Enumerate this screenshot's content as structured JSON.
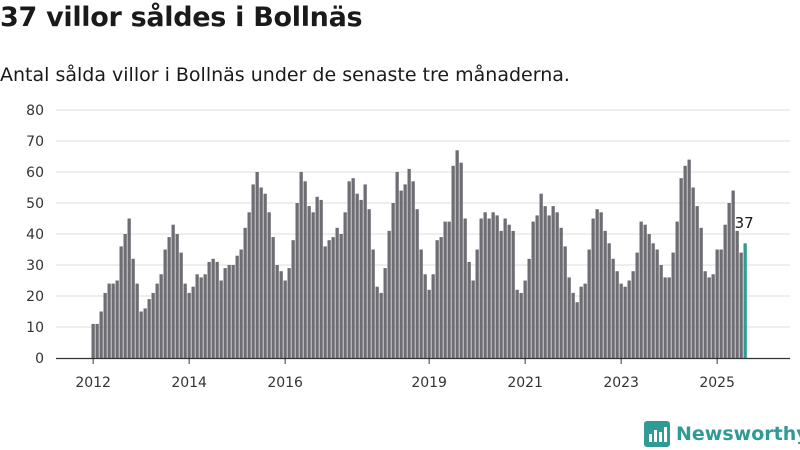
{
  "title": "37 villor såldes i Bollnäs",
  "subtitle": "Antal sålda villor i Bollnäs under de senaste tre månaderna.",
  "brand": "Newsworthy",
  "colors": {
    "bar": "#6e6d73",
    "highlight": "#2f9a96",
    "grid": "#dddddd",
    "axis": "#333333"
  },
  "chart_data": {
    "type": "bar",
    "title": "37 villor såldes i Bollnäs",
    "xlabel": "",
    "ylabel": "",
    "ylim": [
      0,
      80
    ],
    "yticks": [
      0,
      10,
      20,
      30,
      40,
      50,
      60,
      70,
      80
    ],
    "xtick_labels": [
      {
        "label": "2012",
        "index": 0
      },
      {
        "label": "2014",
        "index": 24
      },
      {
        "label": "2016",
        "index": 48
      },
      {
        "label": "2019",
        "index": 84
      },
      {
        "label": "2021",
        "index": 108
      },
      {
        "label": "2023",
        "index": 132
      },
      {
        "label": "2025",
        "index": 156
      }
    ],
    "highlight_label": "37",
    "values": [
      11,
      11,
      15,
      21,
      24,
      24,
      25,
      36,
      40,
      45,
      32,
      24,
      15,
      16,
      19,
      21,
      24,
      27,
      35,
      39,
      43,
      40,
      34,
      24,
      21,
      23,
      27,
      26,
      27,
      31,
      32,
      31,
      25,
      29,
      30,
      30,
      33,
      35,
      42,
      47,
      56,
      60,
      55,
      53,
      47,
      39,
      30,
      28,
      25,
      29,
      38,
      50,
      60,
      57,
      49,
      47,
      52,
      51,
      36,
      38,
      39,
      42,
      40,
      47,
      57,
      58,
      53,
      51,
      56,
      48,
      35,
      23,
      21,
      29,
      41,
      50,
      60,
      54,
      56,
      61,
      57,
      48,
      35,
      27,
      22,
      27,
      38,
      39,
      44,
      44,
      62,
      67,
      63,
      45,
      31,
      25,
      35,
      45,
      47,
      45,
      47,
      46,
      41,
      45,
      43,
      41,
      22,
      21,
      25,
      32,
      44,
      46,
      53,
      49,
      46,
      49,
      47,
      42,
      36,
      26,
      21,
      18,
      23,
      24,
      35,
      45,
      48,
      47,
      41,
      37,
      32,
      28,
      24,
      23,
      25,
      28,
      34,
      44,
      43,
      40,
      37,
      35,
      30,
      26,
      26,
      34,
      44,
      58,
      62,
      64,
      55,
      49,
      42,
      28,
      26,
      27,
      35,
      35,
      43,
      50,
      54,
      41,
      34,
      37
    ]
  }
}
